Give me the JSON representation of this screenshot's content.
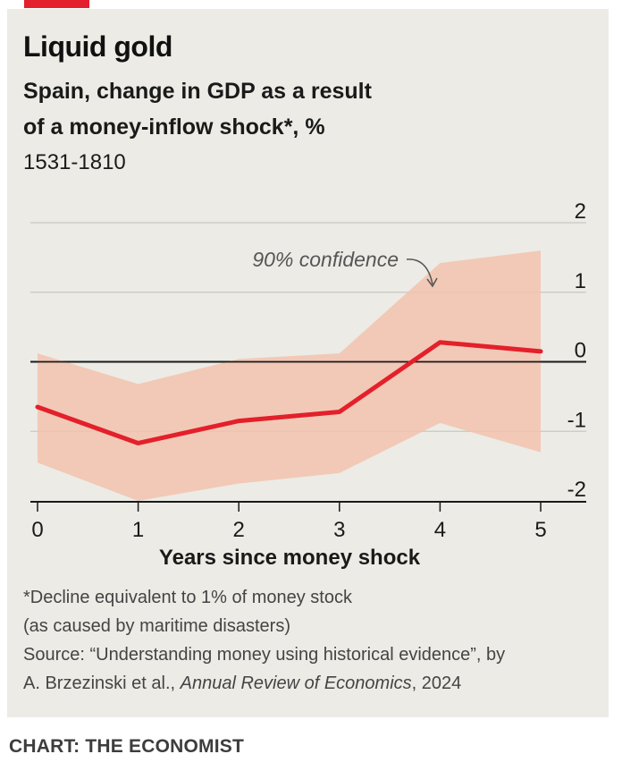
{
  "header": {
    "title": "Liquid gold",
    "subtitle_line1": "Spain, change in GDP as a result",
    "subtitle_line2": "of a money-inflow shock*,  %",
    "period": "1531-1810"
  },
  "footer": {
    "note_line1": "*Decline equivalent to 1% of money stock",
    "note_line2": "(as caused by maritime disasters)",
    "source_line1": "Source: “Understanding money using historical evidence”, by",
    "source_line2_prefix": "A. Brzezinski et al., ",
    "source_line2_journal": "Annual Review of Economics",
    "source_line2_suffix": ", 2024",
    "credit": "CHART: THE ECONOMIST"
  },
  "colors": {
    "line": "#e3202b",
    "band": "#f3c3ad",
    "background": "#ecebe6",
    "accent": "#e3202b"
  },
  "chart_data": {
    "type": "line",
    "title": "Liquid gold",
    "subtitle": "Spain, change in GDP as a result of a money-inflow shock*, %",
    "xlabel": "Years since money shock",
    "ylabel": "",
    "x": [
      0,
      1,
      2,
      3,
      4,
      5
    ],
    "x_tick_labels": [
      "0",
      "1",
      "2",
      "3",
      "4",
      "5"
    ],
    "y_ticks": [
      2,
      1,
      0,
      -1,
      -2
    ],
    "y_tick_labels": [
      "2",
      "1",
      "0",
      "-1",
      "-2"
    ],
    "ylim": [
      -2,
      2
    ],
    "series": [
      {
        "values": [
          -0.65,
          -1.17,
          -0.85,
          -0.72,
          0.28,
          0.15
        ]
      }
    ],
    "confidence_band": {
      "label": "90% confidence",
      "upper": [
        0.12,
        -0.32,
        0.04,
        0.12,
        1.42,
        1.6
      ],
      "lower": [
        -1.45,
        -2.0,
        -1.75,
        -1.6,
        -0.88,
        -1.3
      ]
    },
    "grid": true,
    "y_axis_position": "right"
  }
}
